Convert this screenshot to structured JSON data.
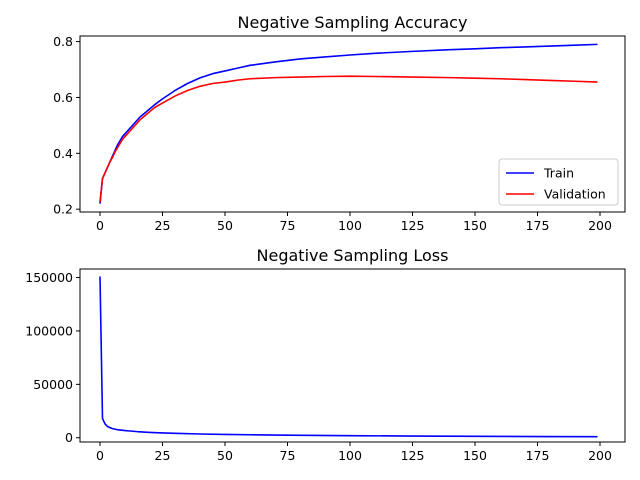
{
  "colors": {
    "train": "#0000ff",
    "validation": "#ff0000",
    "loss": "#0000ff"
  },
  "chart_data": [
    {
      "type": "line",
      "title": "Negative Sampling Accuracy",
      "xlabel": "",
      "ylabel": "",
      "xlim": [
        -8,
        210
      ],
      "ylim": [
        0.19,
        0.82
      ],
      "xticks": [
        0,
        25,
        50,
        75,
        100,
        125,
        150,
        175,
        200
      ],
      "yticks": [
        0.2,
        0.4,
        0.6,
        0.8
      ],
      "yticklabels": [
        "0.2",
        "0.4",
        "0.6",
        "0.8"
      ],
      "grid": false,
      "legend": "lower-right",
      "series": [
        {
          "name": "Train",
          "x": [
            0,
            1,
            2,
            3,
            4,
            5,
            6,
            7,
            8,
            9,
            10,
            12,
            14,
            16,
            18,
            20,
            22,
            25,
            30,
            35,
            40,
            45,
            50,
            55,
            60,
            70,
            80,
            90,
            100,
            110,
            125,
            140,
            150,
            160,
            170,
            180,
            190,
            199
          ],
          "y": [
            0.22,
            0.31,
            0.33,
            0.35,
            0.37,
            0.39,
            0.41,
            0.43,
            0.445,
            0.46,
            0.47,
            0.49,
            0.51,
            0.53,
            0.545,
            0.56,
            0.575,
            0.595,
            0.625,
            0.65,
            0.67,
            0.685,
            0.695,
            0.705,
            0.715,
            0.727,
            0.738,
            0.745,
            0.752,
            0.758,
            0.765,
            0.771,
            0.774,
            0.778,
            0.781,
            0.784,
            0.787,
            0.79
          ]
        },
        {
          "name": "Validation",
          "x": [
            0,
            1,
            2,
            3,
            4,
            5,
            6,
            7,
            8,
            9,
            10,
            12,
            14,
            16,
            18,
            20,
            22,
            25,
            30,
            35,
            40,
            45,
            50,
            55,
            60,
            70,
            80,
            90,
            100,
            110,
            125,
            140,
            150,
            160,
            170,
            180,
            190,
            199
          ],
          "y": [
            0.225,
            0.31,
            0.33,
            0.35,
            0.37,
            0.385,
            0.405,
            0.42,
            0.435,
            0.45,
            0.46,
            0.48,
            0.5,
            0.52,
            0.535,
            0.55,
            0.565,
            0.58,
            0.605,
            0.625,
            0.64,
            0.65,
            0.655,
            0.662,
            0.667,
            0.671,
            0.673,
            0.675,
            0.676,
            0.675,
            0.673,
            0.671,
            0.669,
            0.667,
            0.664,
            0.661,
            0.658,
            0.655
          ]
        }
      ]
    },
    {
      "type": "line",
      "title": "Negative Sampling Loss",
      "xlabel": "",
      "ylabel": "",
      "xlim": [
        -8,
        210
      ],
      "ylim": [
        -4000,
        158000
      ],
      "xticks": [
        0,
        25,
        50,
        75,
        100,
        125,
        150,
        175,
        200
      ],
      "yticks": [
        0,
        50000,
        100000,
        150000
      ],
      "yticklabels": [
        "0",
        "50000",
        "100000",
        "150000"
      ],
      "grid": false,
      "series": [
        {
          "name": "",
          "x": [
            0,
            1,
            2,
            3,
            4,
            5,
            7,
            10,
            15,
            20,
            25,
            30,
            40,
            50,
            60,
            75,
            100,
            125,
            150,
            175,
            199
          ],
          "y": [
            151000,
            18000,
            13000,
            10500,
            9500,
            8500,
            7500,
            6700,
            5700,
            5000,
            4500,
            4100,
            3500,
            3100,
            2800,
            2400,
            1900,
            1600,
            1300,
            1100,
            950
          ]
        }
      ]
    }
  ]
}
